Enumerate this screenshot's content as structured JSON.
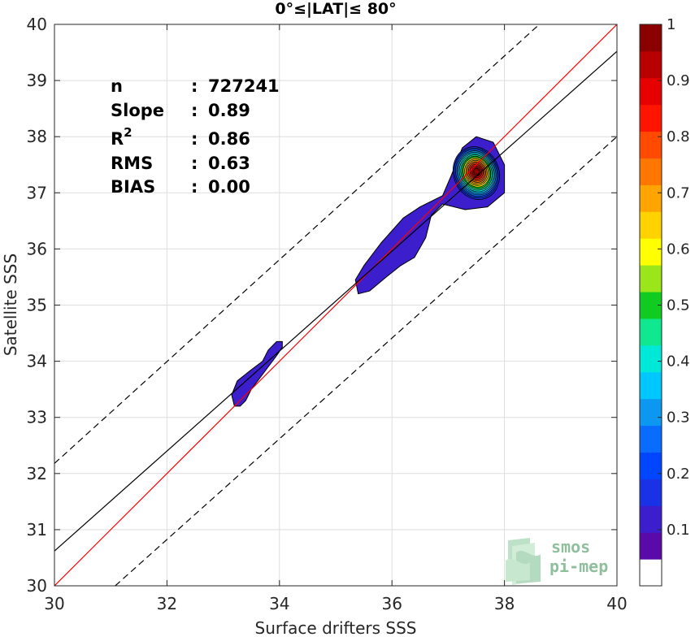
{
  "chart_data": {
    "type": "contour",
    "title": "0°≤|LAT|≤ 80°",
    "xlabel": "Surface drifters SSS",
    "ylabel": "Satellite SSS",
    "xlim": [
      30,
      40
    ],
    "ylim": [
      30,
      40
    ],
    "xticks": [
      30,
      32,
      34,
      36,
      38,
      40
    ],
    "yticks": [
      30,
      31,
      32,
      33,
      34,
      35,
      36,
      37,
      38,
      39,
      40
    ],
    "grid": true,
    "stats": [
      {
        "label": "n",
        "sep": ":",
        "value": "727241"
      },
      {
        "label": "Slope",
        "sep": ":",
        "value": "0.89"
      },
      {
        "label": "R",
        "sup": "2",
        "sep": ":",
        "value": "0.86"
      },
      {
        "label": "RMS",
        "sep": ":",
        "value": "0.63"
      },
      {
        "label": "BIAS",
        "sep": ":",
        "value": "0.00"
      }
    ],
    "reference_lines": [
      {
        "name": "1:1",
        "color": "#ff0000",
        "style": "solid",
        "points": [
          [
            30,
            30
          ],
          [
            40,
            40
          ]
        ]
      },
      {
        "name": "fit",
        "color": "#000000",
        "style": "solid",
        "points": [
          [
            30,
            30.62
          ],
          [
            40,
            39.52
          ]
        ]
      },
      {
        "name": "upper",
        "color": "#000000",
        "style": "dashed",
        "points": [
          [
            30,
            32.18
          ],
          [
            38.62,
            40
          ]
        ]
      },
      {
        "name": "lower",
        "color": "#000000",
        "style": "dashed",
        "points": [
          [
            31.08,
            30
          ],
          [
            40,
            38.0
          ]
        ]
      }
    ],
    "density_regions": [
      {
        "name": "low-salinity-cluster",
        "level": 0.05,
        "outline": [
          [
            33.2,
            33.2
          ],
          [
            33.3,
            33.2
          ],
          [
            33.4,
            33.3
          ],
          [
            33.5,
            33.5
          ],
          [
            33.65,
            33.7
          ],
          [
            33.8,
            33.9
          ],
          [
            33.95,
            34.1
          ],
          [
            34.05,
            34.25
          ],
          [
            34.05,
            34.35
          ],
          [
            33.95,
            34.35
          ],
          [
            33.8,
            34.2
          ],
          [
            33.7,
            34.0
          ],
          [
            33.5,
            33.85
          ],
          [
            33.25,
            33.65
          ],
          [
            33.15,
            33.4
          ]
        ]
      },
      {
        "name": "main-cluster",
        "level": 0.05,
        "outline": [
          [
            35.4,
            35.2
          ],
          [
            35.6,
            35.25
          ],
          [
            35.9,
            35.5
          ],
          [
            36.15,
            35.7
          ],
          [
            36.4,
            35.85
          ],
          [
            36.6,
            36.2
          ],
          [
            36.7,
            36.6
          ],
          [
            36.9,
            36.8
          ],
          [
            37.3,
            36.7
          ],
          [
            37.7,
            36.75
          ],
          [
            38.0,
            37.0
          ],
          [
            38.0,
            37.5
          ],
          [
            37.8,
            37.9
          ],
          [
            37.5,
            38.0
          ],
          [
            37.25,
            37.8
          ],
          [
            37.05,
            37.3
          ],
          [
            36.9,
            36.95
          ],
          [
            36.5,
            36.75
          ],
          [
            36.2,
            36.55
          ],
          [
            35.8,
            36.1
          ],
          [
            35.5,
            35.7
          ],
          [
            35.35,
            35.45
          ]
        ]
      }
    ],
    "peak": {
      "x": 37.5,
      "y": 37.35,
      "value": 1.0
    },
    "colorbar": {
      "ticks": [
        0.1,
        0.2,
        0.3,
        0.4,
        0.5,
        0.6,
        0.7,
        0.8,
        0.9,
        1
      ],
      "tick_labels": [
        "0.1",
        "0.2",
        "0.3",
        "0.4",
        "0.5",
        "0.6",
        "0.7",
        "0.8",
        "0.9",
        "1"
      ],
      "range": [
        0,
        1
      ],
      "colors": [
        "#ffffff",
        "#5a0aa8",
        "#3c1ecc",
        "#1a32e6",
        "#0046ff",
        "#0a6cff",
        "#0c98f0",
        "#00c8ff",
        "#00e8d8",
        "#10e890",
        "#10cc20",
        "#9ae61a",
        "#ffff00",
        "#ffd200",
        "#ffa400",
        "#ff7600",
        "#ff4a00",
        "#ff1400",
        "#e60000",
        "#b80000",
        "#8a0000"
      ]
    },
    "logo": {
      "line1": "smos",
      "line2": "pi-mep"
    }
  }
}
